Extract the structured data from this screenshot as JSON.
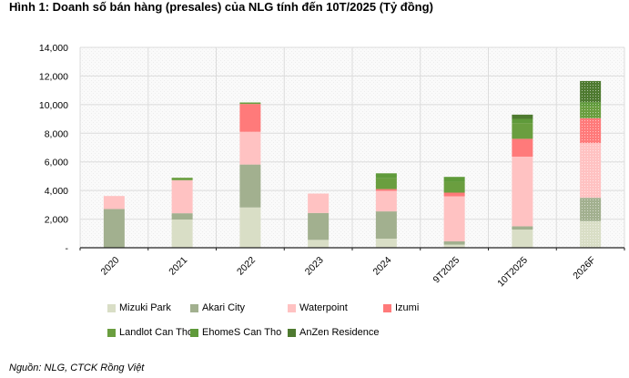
{
  "chart_data": {
    "type": "bar",
    "stacked": true,
    "title": "Hình 1: Doanh số bán hàng (presales) của NLG tính đến 10T/2025 (Tỷ đồng)",
    "xlabel": "",
    "ylabel": "",
    "ylim": [
      0,
      14000
    ],
    "yticks": [
      0,
      2000,
      4000,
      6000,
      8000,
      10000,
      12000,
      14000
    ],
    "ytick_labels": [
      "-",
      "2,000",
      "4,000",
      "6,000",
      "8,000",
      "10,000",
      "12,000",
      "14,000"
    ],
    "grid": true,
    "legend_position": "bottom",
    "categories": [
      "2020",
      "2021",
      "2022",
      "2023",
      "2024",
      "9T2025",
      "10T2025",
      "2026F"
    ],
    "series": [
      {
        "name": "Mizuki Park",
        "color": "#d9dec6",
        "values": [
          0,
          1970,
          2815,
          550,
          635,
          215,
          1270,
          1865
        ]
      },
      {
        "name": "Akari City",
        "color": "#a2b08f",
        "values": [
          2710,
          440,
          3000,
          1880,
          1905,
          230,
          230,
          1625
        ]
      },
      {
        "name": "Waterpoint",
        "color": "#ffc2c2",
        "values": [
          905,
          2310,
          2285,
          1355,
          1435,
          3150,
          4865,
          3830
        ]
      },
      {
        "name": "Izumi",
        "color": "#ff7a7a",
        "values": [
          0,
          0,
          1945,
          0,
          125,
          255,
          1245,
          1730
        ]
      },
      {
        "name": "Landlot Can Tho",
        "color": "#6a9e3f",
        "values": [
          0,
          170,
          105,
          0,
          760,
          760,
          1100,
          840
        ]
      },
      {
        "name": "EhomeS Can Tho",
        "color": "#5f9a3a",
        "values": [
          0,
          0,
          0,
          0,
          340,
          340,
          295,
          280
        ]
      },
      {
        "name": "AnZen Residence",
        "color": "#4e7a30",
        "values": [
          0,
          0,
          0,
          0,
          0,
          0,
          295,
          1480
        ]
      }
    ],
    "forecast_category": "2026F"
  },
  "source": "Nguồn: NLG, CTCK Rồng Việt"
}
